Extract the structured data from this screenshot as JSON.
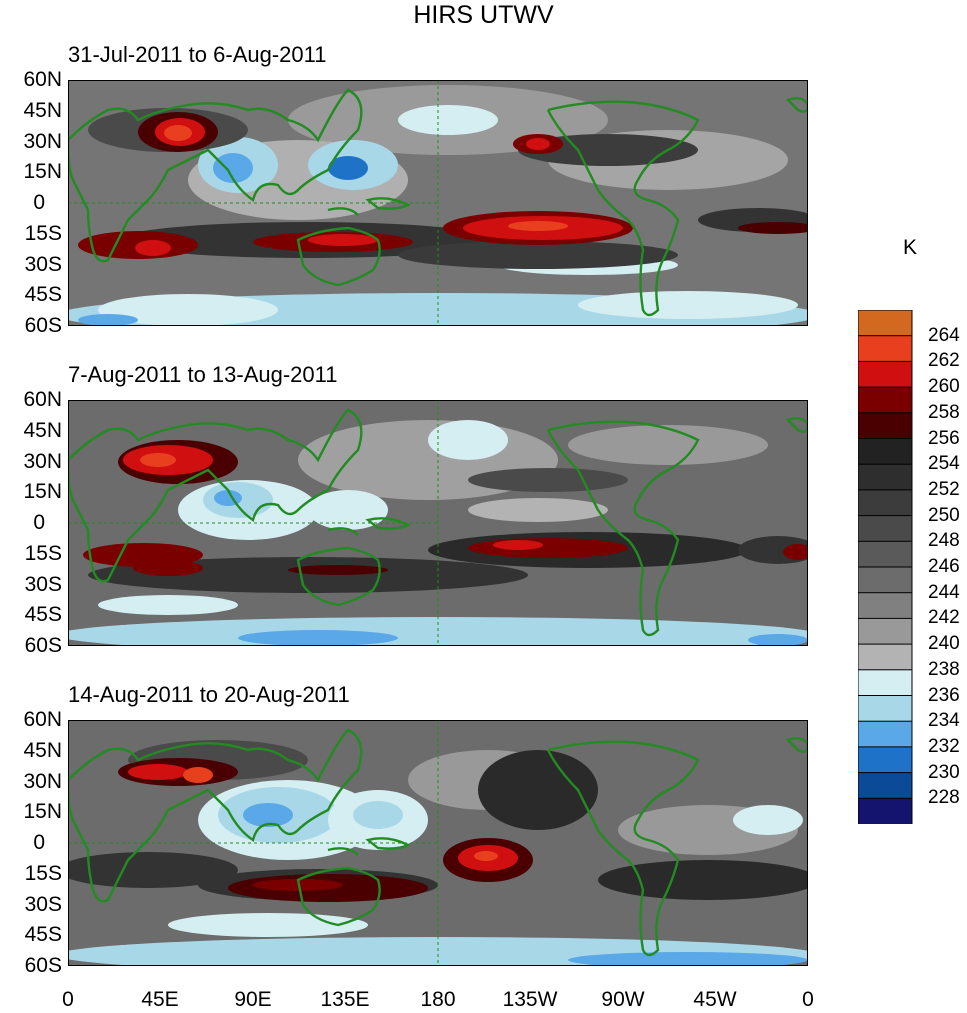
{
  "figure": {
    "title": "HIRS UTWV",
    "colorbar": {
      "unit": "K",
      "levels": [
        264,
        262,
        260,
        258,
        256,
        254,
        252,
        250,
        248,
        246,
        244,
        242,
        240,
        238,
        236,
        234,
        232,
        230,
        228
      ],
      "colors": [
        "#d2691e",
        "#e8401e",
        "#d01010",
        "#7a0000",
        "#4a0000",
        "#222222",
        "#2e2e2e",
        "#3c3c3c",
        "#4a4a4a",
        "#5a5a5a",
        "#6c6c6c",
        "#808080",
        "#999999",
        "#b3b3b3",
        "#d4eef2",
        "#a8d8e8",
        "#5aa8e8",
        "#1e72c8",
        "#0a4a96",
        "#14146e"
      ]
    },
    "lat_labels": [
      "60N",
      "45N",
      "30N",
      "15N",
      "0",
      "15S",
      "30S",
      "45S",
      "60S"
    ],
    "lon_labels": [
      "0",
      "45E",
      "90E",
      "135E",
      "180",
      "135W",
      "90W",
      "45W",
      "0"
    ],
    "panels": [
      {
        "label": "31-Jul-2011 to 6-Aug-2011"
      },
      {
        "label": "7-Aug-2011 to 13-Aug-2011"
      },
      {
        "label": "14-Aug-2011 to 20-Aug-2011"
      }
    ],
    "coastline_color": "#228b22"
  }
}
